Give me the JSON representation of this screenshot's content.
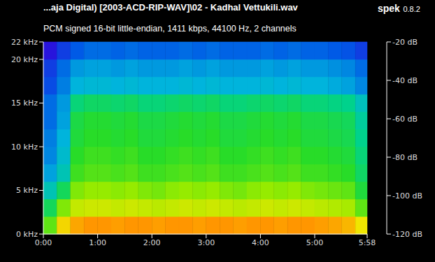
{
  "chart_data": {
    "type": "heatmap",
    "title": "...aja Digital) [2003-ACD-RIP-WAV]\\02 - Kadhal Vettukili.wav",
    "subtitle": "PCM signed 16-bit little-endian, 1411 kbps, 44100 Hz, 2 channels",
    "annotations": [
      "spek",
      "0.8.2"
    ],
    "grid": false,
    "x_bins": [
      0,
      15,
      30,
      45,
      60,
      75,
      90,
      105,
      120,
      135,
      150,
      165,
      180,
      195,
      210,
      225,
      240,
      255,
      270,
      285,
      300,
      315,
      330,
      345,
      358
    ],
    "y_bins": [
      0,
      2,
      4,
      6,
      8,
      10,
      12,
      14,
      16,
      18,
      20,
      22
    ],
    "cells": [
      [
        -55,
        -38,
        -32,
        -30,
        -30,
        -31,
        -30,
        -30,
        -31,
        -30,
        -30,
        -31,
        -30,
        -30,
        -31,
        -30,
        -30,
        -31,
        -30,
        -30,
        -31,
        -32,
        -34,
        -40
      ],
      [
        -65,
        -52,
        -45,
        -44,
        -44,
        -45,
        -44,
        -45,
        -46,
        -45,
        -44,
        -45,
        -44,
        -45,
        -46,
        -45,
        -44,
        -45,
        -44,
        -45,
        -46,
        -47,
        -48,
        -55
      ],
      [
        -75,
        -65,
        -52,
        -50,
        -50,
        -51,
        -50,
        -52,
        -53,
        -51,
        -50,
        -51,
        -50,
        -52,
        -53,
        -51,
        -50,
        -51,
        -50,
        -52,
        -53,
        -54,
        -55,
        -62
      ],
      [
        -82,
        -75,
        -58,
        -56,
        -56,
        -57,
        -56,
        -58,
        -58,
        -57,
        -56,
        -57,
        -56,
        -58,
        -58,
        -57,
        -56,
        -57,
        -56,
        -58,
        -58,
        -59,
        -60,
        -66
      ],
      [
        -85,
        -78,
        -60,
        -58,
        -58,
        -59,
        -58,
        -60,
        -60,
        -59,
        -58,
        -59,
        -58,
        -60,
        -60,
        -59,
        -58,
        -59,
        -58,
        -60,
        -60,
        -61,
        -62,
        -68
      ],
      [
        -86,
        -80,
        -62,
        -60,
        -60,
        -61,
        -60,
        -62,
        -62,
        -61,
        -60,
        -61,
        -60,
        -62,
        -62,
        -61,
        -60,
        -61,
        -60,
        -62,
        -62,
        -63,
        -64,
        -70
      ],
      [
        -88,
        -82,
        -63,
        -61,
        -61,
        -62,
        -61,
        -63,
        -63,
        -62,
        -61,
        -62,
        -61,
        -63,
        -63,
        -62,
        -61,
        -62,
        -61,
        -63,
        -63,
        -64,
        -65,
        -72
      ],
      [
        -88,
        -83,
        -68,
        -66,
        -66,
        -67,
        -66,
        -68,
        -68,
        -67,
        -66,
        -67,
        -66,
        -68,
        -68,
        -67,
        -66,
        -67,
        -66,
        -68,
        -68,
        -69,
        -70,
        -76
      ],
      [
        -92,
        -86,
        -80,
        -79,
        -79,
        -80,
        -79,
        -80,
        -80,
        -80,
        -79,
        -80,
        -79,
        -80,
        -80,
        -80,
        -79,
        -80,
        -79,
        -80,
        -80,
        -81,
        -82,
        -85
      ],
      [
        -94,
        -88,
        -83,
        -82,
        -82,
        -83,
        -82,
        -83,
        -83,
        -83,
        -82,
        -83,
        -82,
        -83,
        -83,
        -83,
        -82,
        -83,
        -82,
        -83,
        -83,
        -84,
        -85,
        -88
      ],
      [
        -100,
        -94,
        -90,
        -88,
        -88,
        -89,
        -88,
        -89,
        -89,
        -89,
        -88,
        -89,
        -88,
        -89,
        -89,
        -89,
        -88,
        -89,
        -88,
        -89,
        -89,
        -90,
        -91,
        -94
      ]
    ],
    "xlim": [
      0,
      358
    ],
    "xticks": [
      {
        "value": 0,
        "label": "0:00"
      },
      {
        "value": 60,
        "label": "1:00"
      },
      {
        "value": 120,
        "label": "2:00"
      },
      {
        "value": 180,
        "label": "3:00"
      },
      {
        "value": 240,
        "label": "4:00"
      },
      {
        "value": 300,
        "label": "5:00"
      },
      {
        "value": 358,
        "label": "5:58"
      }
    ],
    "ylim": [
      0,
      22
    ],
    "yticks": [
      {
        "value": 0,
        "label": "0 kHz"
      },
      {
        "value": 5,
        "label": "5 kHz"
      },
      {
        "value": 10,
        "label": "10 kHz"
      },
      {
        "value": 15,
        "label": "15 kHz"
      },
      {
        "value": 20,
        "label": "20 kHz"
      },
      {
        "value": 22,
        "label": "22 kHz"
      }
    ],
    "colorbar": {
      "range": [
        -120,
        -20
      ],
      "ticks": [
        {
          "value": -20,
          "label": "-20 dB"
        },
        {
          "value": -40,
          "label": "-40 dB"
        },
        {
          "value": -60,
          "label": "-60 dB"
        },
        {
          "value": -80,
          "label": "-80 dB"
        },
        {
          "value": -100,
          "label": "-100 dB"
        },
        {
          "value": -120,
          "label": "-120 dB"
        }
      ]
    }
  }
}
